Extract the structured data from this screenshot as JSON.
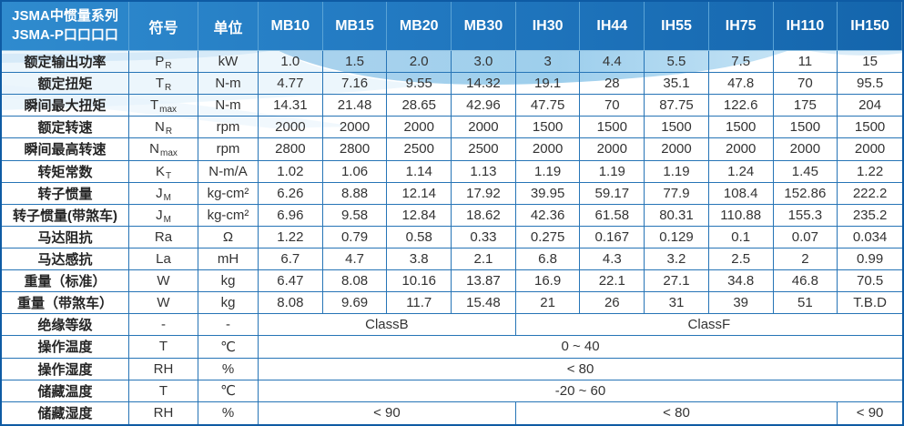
{
  "colors": {
    "header_blue_left": "#2f8bce",
    "header_blue_right": "#1465ac",
    "grid_line_blue": "#2674b6",
    "outer_border_blue": "#0e5ba4",
    "wave_light_blue": "#8cc6e9",
    "header_text": "#ffffff",
    "body_text": "#333333"
  },
  "table": {
    "title_line1": "JSMA中惯量系列",
    "title_line2": "JSMA-P口口口口",
    "columns": [
      "符号",
      "单位",
      "MB10",
      "MB15",
      "MB20",
      "MB30",
      "IH30",
      "IH44",
      "IH55",
      "IH75",
      "IH110",
      "IH150"
    ],
    "rows": [
      {
        "label": "额定输出功率",
        "symbol": {
          "b": "P",
          "s": "R"
        },
        "unit": "kW",
        "values": [
          "1.0",
          "1.5",
          "2.0",
          "3.0",
          "3",
          "4.4",
          "5.5",
          "7.5",
          "11",
          "15"
        ]
      },
      {
        "label": "额定扭矩",
        "symbol": {
          "b": "T",
          "s": "R"
        },
        "unit": "N-m",
        "values": [
          "4.77",
          "7.16",
          "9.55",
          "14.32",
          "19.1",
          "28",
          "35.1",
          "47.8",
          "70",
          "95.5"
        ]
      },
      {
        "label": "瞬间最大扭矩",
        "symbol": {
          "b": "T",
          "s": "max"
        },
        "unit": "N-m",
        "values": [
          "14.31",
          "21.48",
          "28.65",
          "42.96",
          "47.75",
          "70",
          "87.75",
          "122.6",
          "175",
          "204"
        ]
      },
      {
        "label": "额定转速",
        "symbol": {
          "b": "N",
          "s": "R"
        },
        "unit": "rpm",
        "values": [
          "2000",
          "2000",
          "2000",
          "2000",
          "1500",
          "1500",
          "1500",
          "1500",
          "1500",
          "1500"
        ]
      },
      {
        "label": "瞬间最高转速",
        "symbol": {
          "b": "N",
          "s": "max"
        },
        "unit": "rpm",
        "values": [
          "2800",
          "2800",
          "2500",
          "2500",
          "2000",
          "2000",
          "2000",
          "2000",
          "2000",
          "2000"
        ]
      },
      {
        "label": "转矩常数",
        "symbol": {
          "b": "K",
          "s": "T"
        },
        "unit": "N-m/A",
        "values": [
          "1.02",
          "1.06",
          "1.14",
          "1.13",
          "1.19",
          "1.19",
          "1.19",
          "1.24",
          "1.45",
          "1.22"
        ]
      },
      {
        "label": "转子惯量",
        "symbol": {
          "b": "J",
          "s": "M"
        },
        "unit": "kg-cm²",
        "values": [
          "6.26",
          "8.88",
          "12.14",
          "17.92",
          "39.95",
          "59.17",
          "77.9",
          "108.4",
          "152.86",
          "222.2"
        ]
      },
      {
        "label": "转子惯量(带煞车)",
        "symbol": {
          "b": "J",
          "s": "M"
        },
        "unit": "kg-cm²",
        "values": [
          "6.96",
          "9.58",
          "12.84",
          "18.62",
          "42.36",
          "61.58",
          "80.31",
          "110.88",
          "155.3",
          "235.2"
        ]
      },
      {
        "label": "马达阻抗",
        "symbol": {
          "b": "Ra",
          "s": ""
        },
        "unit": "Ω",
        "values": [
          "1.22",
          "0.79",
          "0.58",
          "0.33",
          "0.275",
          "0.167",
          "0.129",
          "0.1",
          "0.07",
          "0.034"
        ]
      },
      {
        "label": "马达感抗",
        "symbol": {
          "b": "La",
          "s": ""
        },
        "unit": "mH",
        "values": [
          "6.7",
          "4.7",
          "3.8",
          "2.1",
          "6.8",
          "4.3",
          "3.2",
          "2.5",
          "2",
          "0.99"
        ]
      },
      {
        "label": "重量（标准）",
        "symbol": {
          "b": "W",
          "s": ""
        },
        "unit": "kg",
        "values": [
          "6.47",
          "8.08",
          "10.16",
          "13.87",
          "16.9",
          "22.1",
          "27.1",
          "34.8",
          "46.8",
          "70.5"
        ]
      },
      {
        "label": "重量（带煞车）",
        "symbol": {
          "b": "W",
          "s": ""
        },
        "unit": "kg",
        "values": [
          "8.08",
          "9.69",
          "11.7",
          "15.48",
          "21",
          "26",
          "31",
          "39",
          "51",
          "T.B.D"
        ]
      },
      {
        "label": "绝缘等级",
        "symbol": {
          "b": "-",
          "s": ""
        },
        "unit": "-",
        "spans": [
          {
            "text": "ClassB",
            "cols": 4
          },
          {
            "text": "ClassF",
            "cols": 6
          }
        ]
      },
      {
        "label": "操作温度",
        "symbol": {
          "b": "T",
          "s": ""
        },
        "unit": "℃",
        "spans": [
          {
            "text": "0 ~ 40",
            "cols": 10
          }
        ]
      },
      {
        "label": "操作湿度",
        "symbol": {
          "b": "RH",
          "s": ""
        },
        "unit": "%",
        "spans": [
          {
            "text": "< 80",
            "cols": 10
          }
        ]
      },
      {
        "label": "储藏温度",
        "symbol": {
          "b": "T",
          "s": ""
        },
        "unit": "℃",
        "spans": [
          {
            "text": "-20 ~ 60",
            "cols": 10
          }
        ]
      },
      {
        "label": "储藏湿度",
        "symbol": {
          "b": "RH",
          "s": ""
        },
        "unit": "%",
        "spans": [
          {
            "text": "< 90",
            "cols": 4
          },
          {
            "text": "< 80",
            "cols": 5
          },
          {
            "text": "< 90",
            "cols": 1
          }
        ]
      }
    ]
  }
}
